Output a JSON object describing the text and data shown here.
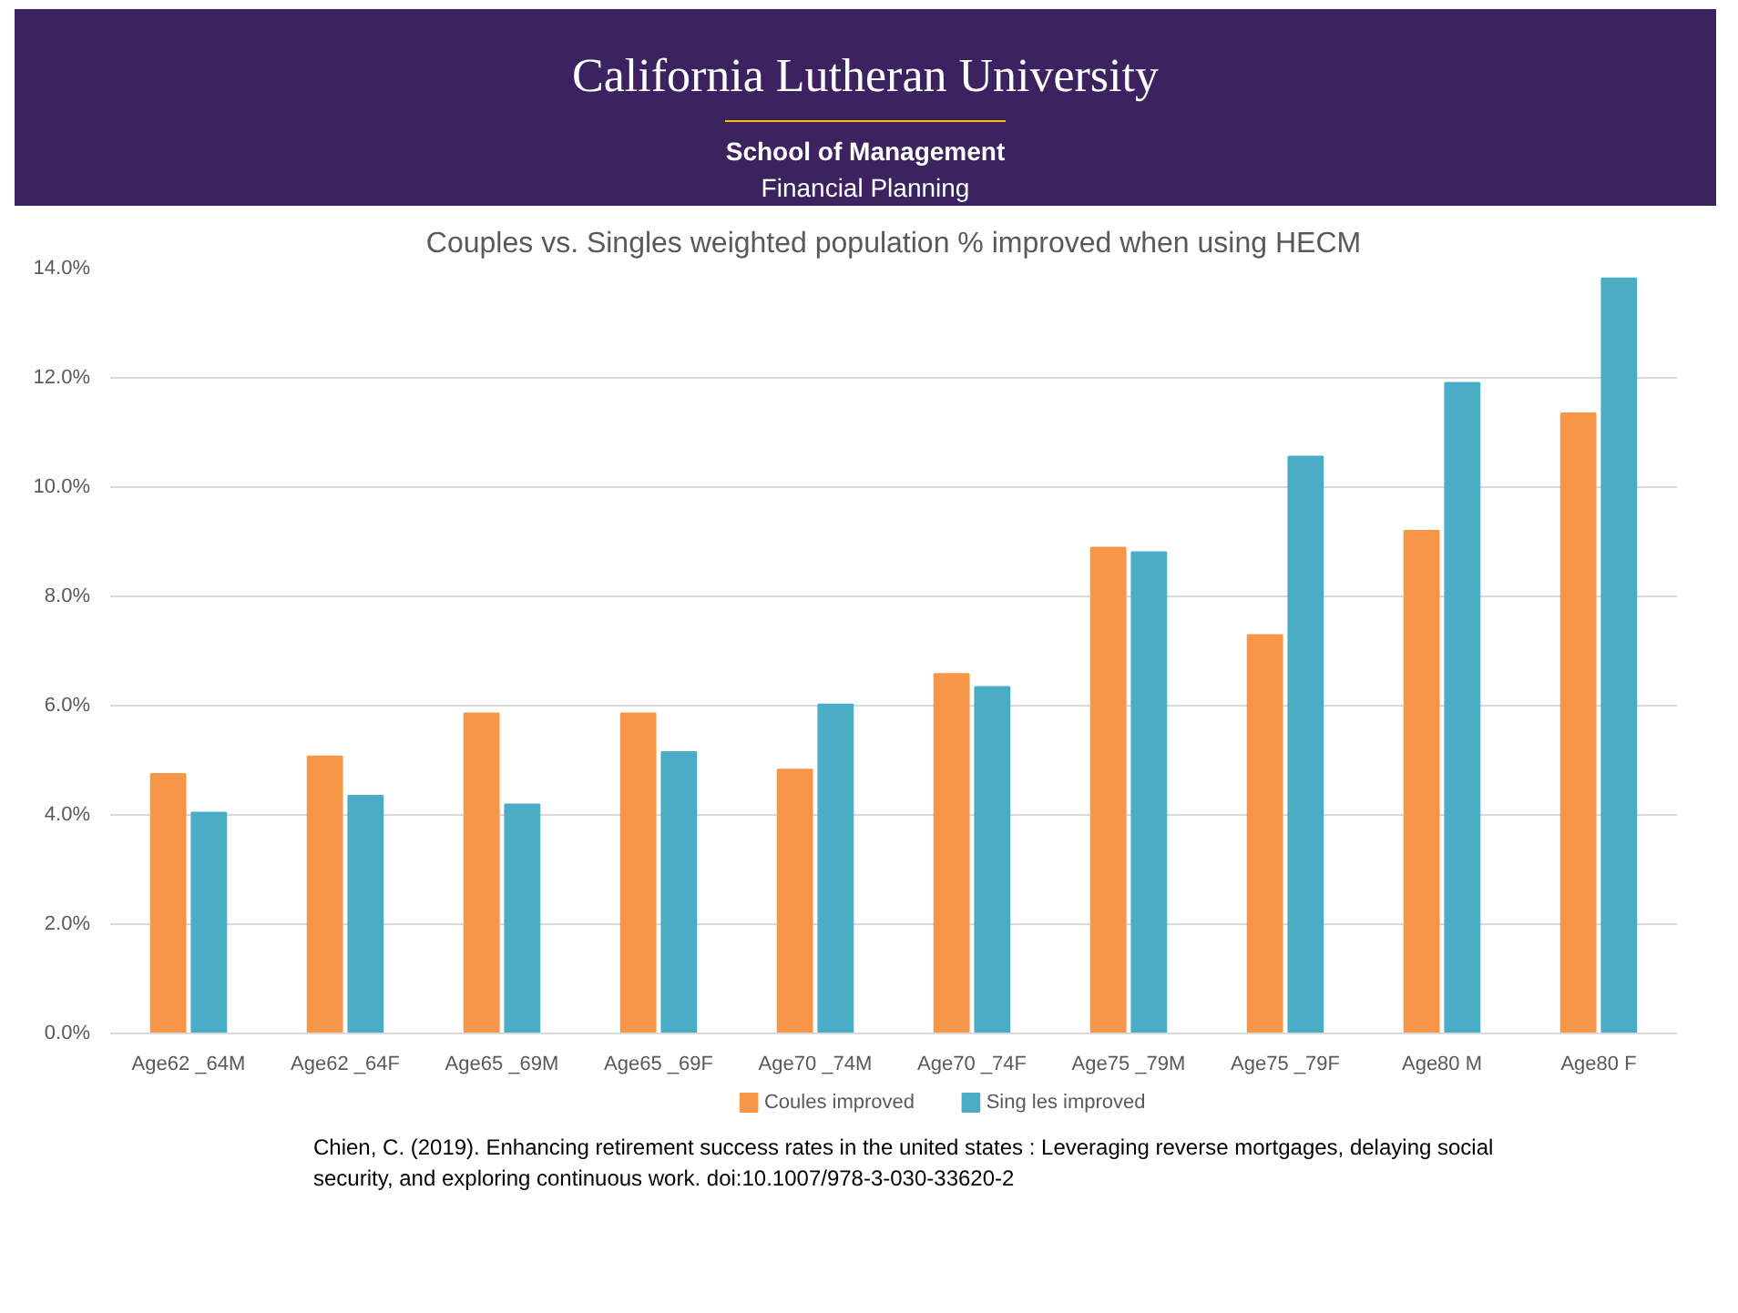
{
  "chart_data": {
    "type": "bar",
    "title": "Couples vs. Singles weighted population % improved when using HECM",
    "categories": [
      "Age62 _64M",
      "Age62 _64F",
      "Age65 _69M",
      "Age65 _69F",
      "Age70 _74M",
      "Age70 _74F",
      "Age75 _79M",
      "Age75 _79F",
      "Age80 M",
      "Age80 F"
    ],
    "series": [
      {
        "name": "Coules improved",
        "color": "#f79646",
        "values": [
          4.75,
          5.07,
          5.86,
          5.86,
          4.83,
          6.58,
          8.89,
          7.29,
          9.2,
          11.35
        ]
      },
      {
        "name": "Sing les improved",
        "color": "#4bacc6",
        "values": [
          4.04,
          4.35,
          4.19,
          5.15,
          6.02,
          6.34,
          8.81,
          10.56,
          11.91,
          13.82
        ]
      }
    ],
    "ylim": [
      0,
      14
    ],
    "yticks": [
      {
        "value": 0,
        "label": "0.0%"
      },
      {
        "value": 2,
        "label": "2.0%"
      },
      {
        "value": 4,
        "label": "4.0%"
      },
      {
        "value": 6,
        "label": "6.0%"
      },
      {
        "value": 8,
        "label": "8.0%"
      },
      {
        "value": 10,
        "label": "10.0%"
      },
      {
        "value": 12,
        "label": "12.0%"
      },
      {
        "value": 14,
        "label": "14.0%"
      }
    ],
    "grid": "y",
    "legend": "bottom",
    "annotations": [
      "California Lutheran University",
      "School of Management",
      "Financial Planning",
      "Chien, C. (2019). Enhancing retirement success rates in the united states : Leveraging reverse mortgages, delaying social security, and exploring continuous work. doi:10.1007/978-3-030-33620-2"
    ]
  }
}
